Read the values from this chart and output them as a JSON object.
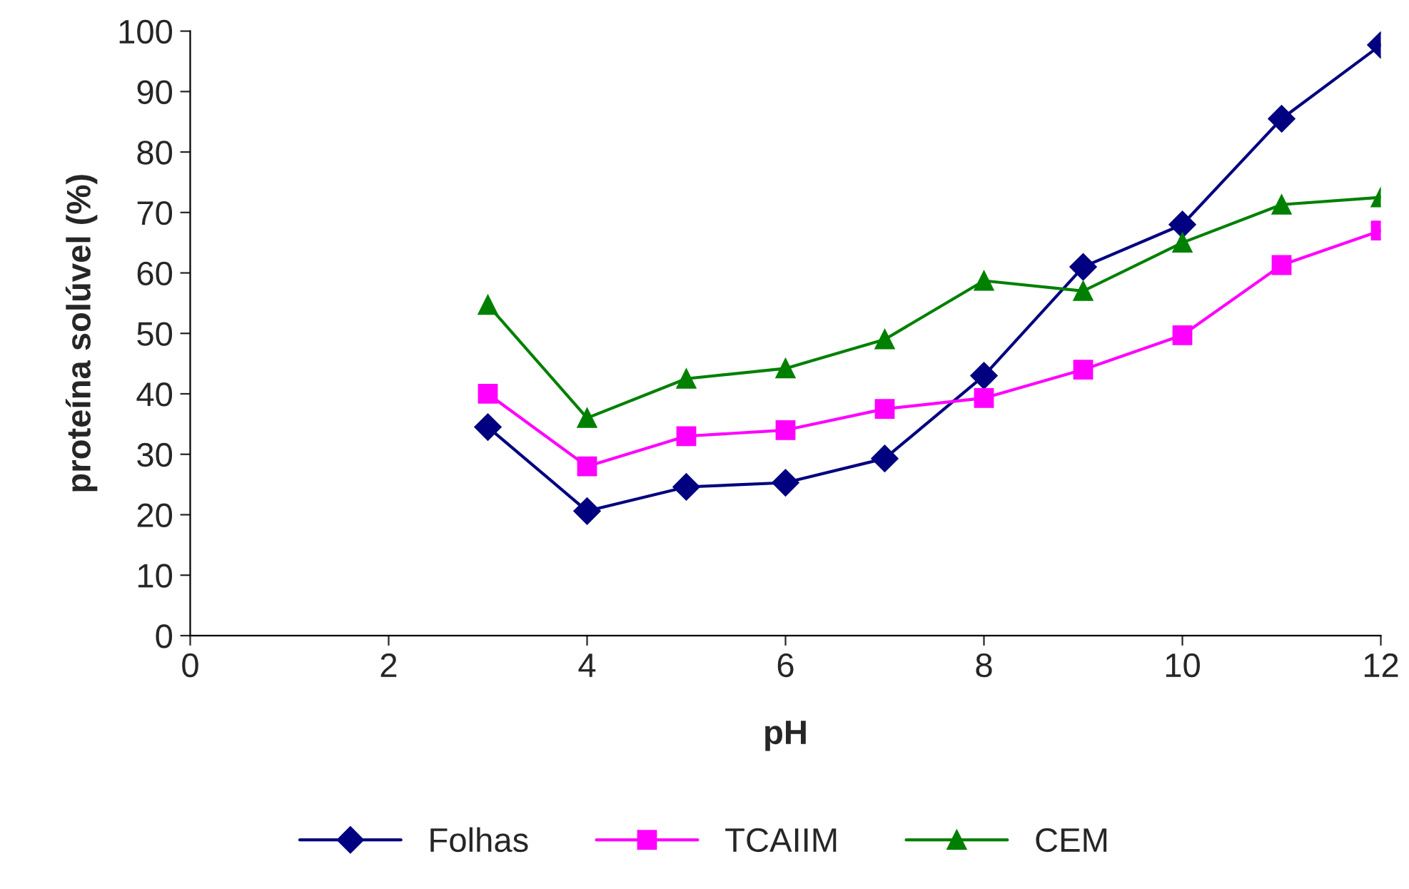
{
  "chart_data": {
    "type": "line",
    "xlabel": "pH",
    "ylabel": "proteína solúvel (%)",
    "x": [
      3,
      4,
      5,
      6,
      7,
      8,
      9,
      10,
      11,
      12
    ],
    "series": [
      {
        "name": "Folhas",
        "color": "#000080",
        "marker": "diamond",
        "values": [
          34.5,
          20.6,
          24.6,
          25.3,
          29.3,
          43,
          61,
          68,
          85.5,
          97.7
        ]
      },
      {
        "name": "TCAIIM",
        "color": "#ff00ff",
        "marker": "square",
        "values": [
          40,
          28,
          33,
          34,
          37.5,
          39.3,
          44,
          49.7,
          61.3,
          67
        ]
      },
      {
        "name": "CEM",
        "color": "#008000",
        "marker": "triangle",
        "values": [
          54.7,
          36,
          42.5,
          44.2,
          49,
          58.7,
          57,
          65,
          71.3,
          72.5
        ]
      }
    ],
    "xlim": [
      0,
      12
    ],
    "xticks": [
      0,
      2,
      4,
      6,
      8,
      10,
      12
    ],
    "ylim": [
      0,
      100
    ],
    "yticks": [
      0,
      10,
      20,
      30,
      40,
      50,
      60,
      70,
      80,
      90,
      100
    ],
    "grid": false,
    "legend": "bottom",
    "line_style": "solid"
  }
}
